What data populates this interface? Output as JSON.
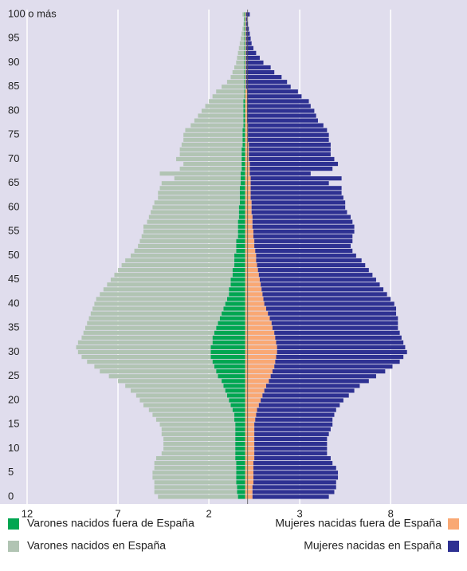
{
  "chart_data": {
    "type": "pyramid",
    "categories": [
      "0",
      null,
      null,
      null,
      null,
      "5",
      null,
      null,
      null,
      null,
      "10",
      null,
      null,
      null,
      null,
      "15",
      null,
      null,
      null,
      null,
      "20",
      null,
      null,
      null,
      null,
      "25",
      null,
      null,
      null,
      null,
      "30",
      null,
      null,
      null,
      null,
      "35",
      null,
      null,
      null,
      null,
      "40",
      null,
      null,
      null,
      null,
      "45",
      null,
      null,
      null,
      null,
      "50",
      null,
      null,
      null,
      null,
      "55",
      null,
      null,
      null,
      null,
      "60",
      null,
      null,
      null,
      null,
      "65",
      null,
      null,
      null,
      null,
      "70",
      null,
      null,
      null,
      null,
      "75",
      null,
      null,
      null,
      null,
      "80",
      null,
      null,
      null,
      null,
      "85",
      null,
      null,
      null,
      null,
      "90",
      null,
      null,
      null,
      null,
      "95",
      null,
      null,
      null,
      null,
      "100 o más"
    ],
    "series": [
      {
        "name": "Varones nacidos fuera de España",
        "color": "#00a651",
        "values": [
          0.4,
          0.45,
          0.45,
          0.5,
          0.5,
          0.5,
          0.5,
          0.5,
          0.55,
          0.55,
          0.55,
          0.55,
          0.55,
          0.55,
          0.55,
          0.55,
          0.6,
          0.6,
          0.7,
          0.8,
          0.9,
          1.0,
          1.1,
          1.2,
          1.3,
          1.5,
          1.6,
          1.7,
          1.8,
          1.9,
          1.9,
          1.9,
          1.8,
          1.8,
          1.7,
          1.6,
          1.5,
          1.4,
          1.3,
          1.2,
          1.1,
          1.0,
          0.9,
          0.9,
          0.8,
          0.8,
          0.7,
          0.7,
          0.6,
          0.6,
          0.6,
          0.5,
          0.5,
          0.5,
          0.4,
          0.4,
          0.4,
          0.4,
          0.35,
          0.35,
          0.35,
          0.3,
          0.3,
          0.3,
          0.3,
          0.25,
          0.25,
          0.25,
          0.2,
          0.2,
          0.2,
          0.2,
          0.2,
          0.15,
          0.15,
          0.15,
          0.15,
          0.1,
          0.1,
          0.1,
          0.1,
          0.1,
          0.1,
          0.05,
          0.05,
          0.05,
          0.05,
          0.05,
          0.05,
          0.05,
          0.05,
          0.05,
          0.05,
          0.05,
          0.05,
          0.05,
          0.05,
          0.05,
          0.05,
          0.05,
          0.05
        ]
      },
      {
        "name": "Varones nacidos en España",
        "color": "#b1c4b3",
        "values": [
          4.4,
          4.55,
          4.55,
          4.5,
          4.6,
          4.6,
          4.5,
          4.5,
          4.35,
          4.05,
          3.95,
          3.95,
          3.95,
          4.05,
          4.05,
          4.15,
          4.3,
          4.5,
          4.6,
          4.8,
          4.9,
          5.0,
          5.2,
          5.4,
          5.7,
          6.0,
          6.4,
          6.6,
          6.9,
          7.1,
          7.3,
          7.4,
          7.4,
          7.2,
          7.2,
          7.2,
          7.2,
          7.2,
          7.2,
          7.2,
          7.2,
          7.2,
          7.1,
          6.9,
          6.8,
          6.6,
          6.5,
          6.3,
          6.2,
          6.0,
          5.7,
          5.6,
          5.4,
          5.3,
          5.3,
          5.2,
          5.2,
          5.0,
          4.95,
          4.85,
          4.75,
          4.7,
          4.5,
          4.5,
          4.4,
          4.35,
          3.65,
          4.45,
          3.4,
          3.2,
          3.6,
          3.4,
          3.4,
          3.35,
          3.25,
          3.25,
          3.15,
          2.9,
          2.7,
          2.5,
          2.3,
          2.1,
          1.9,
          1.75,
          1.55,
          1.25,
          0.95,
          0.75,
          0.65,
          0.55,
          0.45,
          0.4,
          0.35,
          0.3,
          0.25,
          0.2,
          0.15,
          0.1,
          0.05,
          0.03,
          0.1
        ]
      },
      {
        "name": "Mujeres nacidas fuera de España",
        "color": "#f9a874",
        "values": [
          0.4,
          0.4,
          0.4,
          0.45,
          0.45,
          0.45,
          0.45,
          0.45,
          0.5,
          0.5,
          0.5,
          0.5,
          0.5,
          0.5,
          0.5,
          0.5,
          0.55,
          0.6,
          0.65,
          0.75,
          0.85,
          0.95,
          1.05,
          1.15,
          1.3,
          1.4,
          1.5,
          1.6,
          1.65,
          1.7,
          1.75,
          1.75,
          1.7,
          1.65,
          1.6,
          1.5,
          1.45,
          1.35,
          1.25,
          1.15,
          1.05,
          1.0,
          0.95,
          0.9,
          0.85,
          0.8,
          0.75,
          0.7,
          0.65,
          0.6,
          0.6,
          0.55,
          0.5,
          0.5,
          0.45,
          0.45,
          0.4,
          0.4,
          0.4,
          0.35,
          0.35,
          0.35,
          0.3,
          0.3,
          0.3,
          0.3,
          0.3,
          0.25,
          0.25,
          0.25,
          0.2,
          0.2,
          0.2,
          0.2,
          0.15,
          0.15,
          0.15,
          0.15,
          0.1,
          0.1,
          0.1,
          0.1,
          0.1,
          0.1,
          0.1,
          0.05,
          0.05,
          0.05,
          0.05,
          0.05,
          0.05,
          0.05,
          0.05,
          0.05,
          0.05,
          0.05,
          0.05,
          0.05,
          0.05,
          0.05,
          0.05
        ]
      },
      {
        "name": "Mujeres nacidas en España",
        "color": "#2e3192",
        "values": [
          4.2,
          4.5,
          4.6,
          4.55,
          4.65,
          4.65,
          4.55,
          4.35,
          4.2,
          4.0,
          4.0,
          4.0,
          4.0,
          4.1,
          4.2,
          4.3,
          4.25,
          4.3,
          4.35,
          4.45,
          4.55,
          4.75,
          4.95,
          5.15,
          5.5,
          5.8,
          6.2,
          6.5,
          6.85,
          7.0,
          7.15,
          7.05,
          7.0,
          6.95,
          6.9,
          6.9,
          6.95,
          7.05,
          7.05,
          7.15,
          7.15,
          7.0,
          6.85,
          6.7,
          6.55,
          6.4,
          6.25,
          6.1,
          5.95,
          5.8,
          5.5,
          5.35,
          5.3,
          5.4,
          5.45,
          5.55,
          5.6,
          5.5,
          5.4,
          5.25,
          5.15,
          5.15,
          5.1,
          5.0,
          5.0,
          4.3,
          5.0,
          3.35,
          4.55,
          4.85,
          4.7,
          4.5,
          4.5,
          4.5,
          4.45,
          4.45,
          4.35,
          4.15,
          3.9,
          3.8,
          3.7,
          3.5,
          3.4,
          3.0,
          2.8,
          2.45,
          2.25,
          1.95,
          1.55,
          1.35,
          0.95,
          0.75,
          0.55,
          0.4,
          0.3,
          0.25,
          0.2,
          0.15,
          0.1,
          0.05,
          0.2
        ]
      }
    ],
    "xlim": [
      -12,
      12.2
    ],
    "xticks": [
      {
        "value": -12,
        "label": "12"
      },
      {
        "value": -7,
        "label": "7"
      },
      {
        "value": -2,
        "label": "2"
      },
      3,
      8
    ],
    "grid": true
  }
}
